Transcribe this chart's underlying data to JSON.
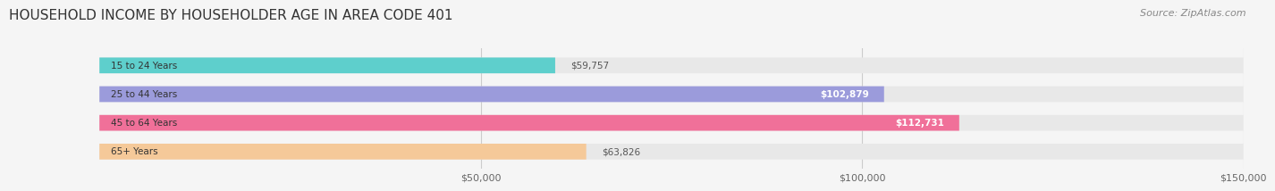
{
  "title": "HOUSEHOLD INCOME BY HOUSEHOLDER AGE IN AREA CODE 401",
  "source": "Source: ZipAtlas.com",
  "categories": [
    "15 to 24 Years",
    "25 to 44 Years",
    "45 to 64 Years",
    "65+ Years"
  ],
  "values": [
    59757,
    102879,
    112731,
    63826
  ],
  "bar_colors": [
    "#5ecfcc",
    "#9b9bdb",
    "#f07099",
    "#f5c999"
  ],
  "bg_bar_color": "#e8e8e8",
  "value_labels": [
    "$59,757",
    "$102,879",
    "$112,731",
    "$63,826"
  ],
  "xlim": [
    0,
    150000
  ],
  "xticks": [
    50000,
    100000,
    150000
  ],
  "xtick_labels": [
    "$50,000",
    "$100,000",
    "$150,000"
  ],
  "title_fontsize": 11,
  "source_fontsize": 8,
  "bar_height": 0.55,
  "fig_bg_color": "#f5f5f5",
  "label_threshold": 80000
}
